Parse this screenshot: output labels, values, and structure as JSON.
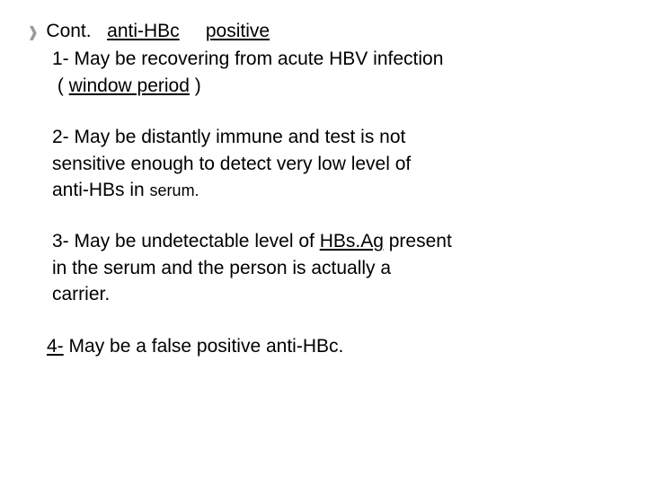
{
  "header": {
    "cont": "Cont.",
    "title_underlined_1": "anti-HBc",
    "title_underlined_2": "positive"
  },
  "item1": {
    "lead": "1- ",
    "text_a": "May be recovering from acute HBV infection",
    "text_b_open": "( ",
    "text_b_underlined": "window period",
    "text_b_close": " )"
  },
  "item2": {
    "lead": "2- ",
    "line_a": "May be distantly immune and test is not",
    "line_b": "sensitive  enough to detect very low level of",
    "line_c_prefix": "anti-HBs ",
    "line_c_in": "in ",
    "line_c_serum": "serum."
  },
  "item3": {
    "lead": "3- ",
    "text_a1": "May be undetectable level of ",
    "text_a_under": "HBs.Ag",
    "text_a2": " present",
    "text_b": "in the serum and the person is actually a",
    "text_c": "carrier."
  },
  "item4": {
    "lead_under": "4-",
    "text": " May be a false positive anti-HBc."
  },
  "colors": {
    "text": "#000000",
    "bullet": "#999999",
    "background": "#ffffff"
  }
}
